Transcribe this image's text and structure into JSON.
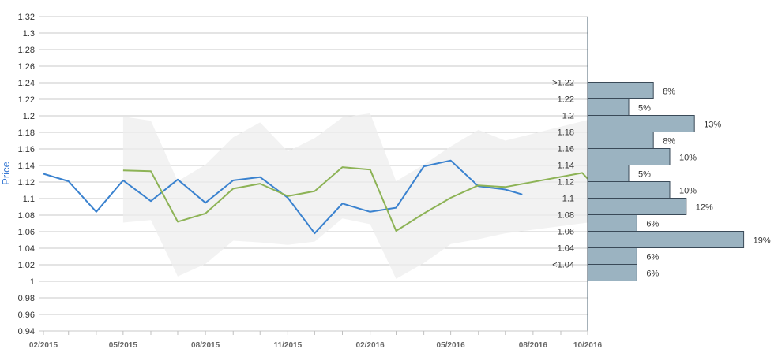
{
  "chart_data": {
    "type": "line",
    "ylabel": "Price",
    "ylim": [
      0.94,
      1.32
    ],
    "yticks": [
      "0.94",
      "0.96",
      "0.98",
      "1",
      "1.02",
      "1.04",
      "1.06",
      "1.08",
      "1.1",
      "1.12",
      "1.14",
      "1.16",
      "1.18",
      "1.2",
      "1.22",
      "1.24",
      "1.26",
      "1.28",
      "1.3",
      "1.32"
    ],
    "xlim": [
      "2015-02-01",
      "2016-10-01"
    ],
    "xticks": [
      {
        "label": "02/2015",
        "date": "2015-02-01"
      },
      {
        "label": "05/2015",
        "date": "2015-05-01"
      },
      {
        "label": "08/2015",
        "date": "2015-08-01"
      },
      {
        "label": "11/2015",
        "date": "2015-11-01"
      },
      {
        "label": "02/2016",
        "date": "2016-02-01"
      },
      {
        "label": "05/2016",
        "date": "2016-05-01"
      },
      {
        "label": "08/2016",
        "date": "2016-08-01"
      },
      {
        "label": "10/2016",
        "date": "2016-10-01"
      }
    ],
    "series": [
      {
        "role": "actual",
        "color": "#3a82cf",
        "points": [
          [
            "2015-02-01",
            1.13
          ],
          [
            "2015-03-01",
            1.121
          ],
          [
            "2015-04-01",
            1.084
          ],
          [
            "2015-05-01",
            1.122
          ],
          [
            "2015-06-01",
            1.097
          ],
          [
            "2015-07-01",
            1.123
          ],
          [
            "2015-08-01",
            1.095
          ],
          [
            "2015-09-01",
            1.122
          ],
          [
            "2015-10-01",
            1.126
          ],
          [
            "2015-11-01",
            1.101
          ],
          [
            "2015-12-01",
            1.058
          ],
          [
            "2016-01-01",
            1.094
          ],
          [
            "2016-02-01",
            1.084
          ],
          [
            "2016-03-01",
            1.089
          ],
          [
            "2016-04-01",
            1.139
          ],
          [
            "2016-05-01",
            1.146
          ],
          [
            "2016-06-01",
            1.115
          ],
          [
            "2016-07-01",
            1.111
          ],
          [
            "2016-07-20",
            1.105
          ]
        ]
      },
      {
        "role": "forecast",
        "color": "#8db356",
        "points": [
          [
            "2015-05-01",
            1.134
          ],
          [
            "2015-06-01",
            1.133
          ],
          [
            "2015-07-01",
            1.072
          ],
          [
            "2015-08-01",
            1.082
          ],
          [
            "2015-09-01",
            1.112
          ],
          [
            "2015-10-01",
            1.118
          ],
          [
            "2015-11-01",
            1.103
          ],
          [
            "2015-12-01",
            1.109
          ],
          [
            "2016-01-01",
            1.138
          ],
          [
            "2016-02-01",
            1.135
          ],
          [
            "2016-03-01",
            1.061
          ],
          [
            "2016-04-01",
            1.082
          ],
          [
            "2016-05-01",
            1.101
          ],
          [
            "2016-06-01",
            1.116
          ],
          [
            "2016-07-01",
            1.114
          ],
          [
            "2016-09-25",
            1.131
          ],
          [
            "2016-10-01",
            1.124
          ]
        ]
      }
    ],
    "band": {
      "color": "#eeeeee",
      "upper": [
        [
          "2015-05-01",
          1.199
        ],
        [
          "2015-06-01",
          1.194
        ],
        [
          "2015-07-01",
          1.121
        ],
        [
          "2015-08-01",
          1.141
        ],
        [
          "2015-09-01",
          1.174
        ],
        [
          "2015-10-01",
          1.192
        ],
        [
          "2015-11-01",
          1.157
        ],
        [
          "2015-12-01",
          1.173
        ],
        [
          "2016-01-01",
          1.198
        ],
        [
          "2016-02-01",
          1.203
        ],
        [
          "2016-03-01",
          1.121
        ],
        [
          "2016-04-01",
          1.141
        ],
        [
          "2016-05-01",
          1.163
        ],
        [
          "2016-06-01",
          1.183
        ],
        [
          "2016-07-01",
          1.17
        ],
        [
          "2016-10-01",
          1.195
        ]
      ],
      "lower": [
        [
          "2015-05-01",
          1.071
        ],
        [
          "2015-06-01",
          1.074
        ],
        [
          "2015-07-01",
          1.006
        ],
        [
          "2015-08-01",
          1.021
        ],
        [
          "2015-09-01",
          1.049
        ],
        [
          "2015-10-01",
          1.047
        ],
        [
          "2015-11-01",
          1.044
        ],
        [
          "2015-12-01",
          1.048
        ],
        [
          "2016-01-01",
          1.076
        ],
        [
          "2016-02-01",
          1.069
        ],
        [
          "2016-03-01",
          1.003
        ],
        [
          "2016-04-01",
          1.022
        ],
        [
          "2016-05-01",
          1.045
        ],
        [
          "2016-06-01",
          1.051
        ],
        [
          "2016-07-01",
          1.058
        ],
        [
          "2016-10-01",
          1.071
        ]
      ]
    },
    "distribution": {
      "type": "bar",
      "orientation": "horizontal",
      "color": "#9bb3c1",
      "border": "#3a4a58",
      "bins": [
        {
          "label": ">1.22",
          "value": 8,
          "text": "8%"
        },
        {
          "label": "1.22",
          "value": 5,
          "text": "5%"
        },
        {
          "label": "1.2",
          "value": 13,
          "text": "13%"
        },
        {
          "label": "1.18",
          "value": 8,
          "text": "8%"
        },
        {
          "label": "1.16",
          "value": 10,
          "text": "10%"
        },
        {
          "label": "1.14",
          "value": 5,
          "text": "5%"
        },
        {
          "label": "1.12",
          "value": 10,
          "text": "10%"
        },
        {
          "label": "1.1",
          "value": 12,
          "text": "12%"
        },
        {
          "label": "1.08",
          "value": 6,
          "text": "6%"
        },
        {
          "label": "1.06",
          "value": 19,
          "text": "19%"
        },
        {
          "label": "1.04",
          "value": 6,
          "text": "6%"
        },
        {
          "label": "<1.04",
          "value": 6,
          "text": "6%"
        }
      ]
    }
  }
}
